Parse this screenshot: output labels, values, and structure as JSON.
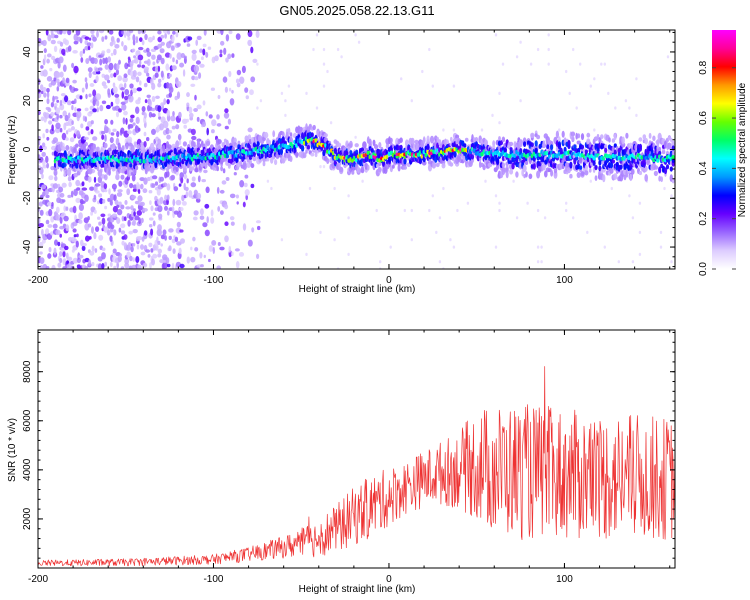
{
  "title": "GN05.2025.058.22.13.G11",
  "chart_data": [
    {
      "type": "heatmap",
      "title": "GN05.2025.058.22.13.G11",
      "xlabel": "Height of straight line (km)",
      "ylabel": "Frequency (Hz)",
      "xlim": [
        -200,
        163
      ],
      "ylim": [
        -49,
        49
      ],
      "xticks": [
        -200,
        -100,
        0,
        100
      ],
      "yticks": [
        -40,
        -20,
        0,
        20,
        40
      ],
      "ridge": {
        "x": [
          -190,
          -170,
          -150,
          -130,
          -110,
          -90,
          -70,
          -55,
          -45,
          -38,
          -30,
          -20,
          -12,
          -5,
          0,
          10,
          20,
          30,
          40,
          60,
          80,
          100,
          120,
          140,
          163
        ],
        "y": [
          -4,
          -4,
          -4,
          -4,
          -3,
          -2,
          0,
          2,
          4,
          2,
          -3,
          -4,
          -2,
          -4,
          -2,
          -2,
          -2,
          -1,
          0,
          -2,
          -2,
          -2,
          -3,
          -3,
          -4
        ]
      },
      "colorbar": {
        "label": "Normalized spectral amplitude",
        "range": [
          0.0,
          0.95
        ],
        "ticks": [
          0.0,
          0.2,
          0.4,
          0.6,
          0.8
        ],
        "tick_labels": [
          "0.0",
          "0.2",
          "0.4",
          "0.6",
          "0.8"
        ],
        "colors": [
          "#ffffff",
          "#ddccff",
          "#9966ff",
          "#6600ff",
          "#0000ff",
          "#0099ff",
          "#00ffff",
          "#00ff66",
          "#66ff00",
          "#ffff00",
          "#ff9900",
          "#ff0000",
          "#ff0099",
          "#ff00ff"
        ]
      }
    },
    {
      "type": "line",
      "xlabel": "Height of straight line (km)",
      "ylabel": "SNR (10 * v/v)",
      "xlim": [
        -200,
        163
      ],
      "ylim": [
        0,
        9700
      ],
      "xticks": [
        -200,
        -100,
        0,
        100
      ],
      "yticks": [
        2000,
        4000,
        6000,
        8000
      ],
      "series": [
        {
          "name": "SNR",
          "color": "#ee3333",
          "envelope_x": [
            -200,
            -150,
            -100,
            -80,
            -60,
            -45,
            -30,
            -20,
            -10,
            0,
            10,
            25,
            40,
            50,
            60,
            80,
            100,
            120,
            140,
            163
          ],
          "envelope_mean": [
            200,
            230,
            350,
            550,
            850,
            1100,
            1600,
            2100,
            2500,
            2900,
            3300,
            3800,
            4000,
            4200,
            4000,
            3900,
            3800,
            3700,
            3700,
            3600
          ],
          "envelope_spread": [
            120,
            150,
            200,
            300,
            450,
            700,
            1000,
            1200,
            1300,
            1200,
            1100,
            1200,
            1600,
            2300,
            2700,
            2800,
            2700,
            2600,
            2600,
            2500
          ]
        }
      ]
    }
  ]
}
